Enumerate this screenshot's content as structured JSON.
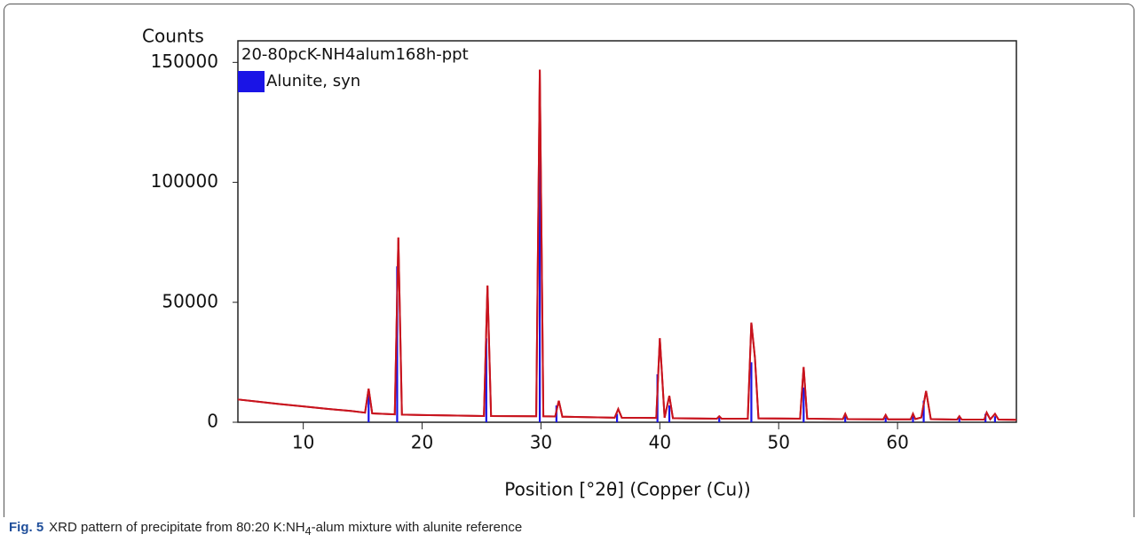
{
  "chart_data": {
    "type": "line",
    "y_label": "Counts",
    "x_label": "Position [°2θ] (Copper (Cu))",
    "xlim": [
      4.5,
      70
    ],
    "xticks": [
      10,
      20,
      30,
      40,
      50,
      60
    ],
    "ylim": [
      0,
      159000
    ],
    "yticks": [
      0,
      50000,
      100000,
      150000
    ],
    "legend": "upper left",
    "series": [
      {
        "name": "20-80pcK-NH4alum168h-ppt",
        "color": "#c8141e",
        "kind": "line",
        "x": [
          4.5,
          6,
          8,
          10,
          12,
          14,
          15.2,
          15.5,
          15.8,
          17.7,
          18.0,
          18.3,
          20,
          25.2,
          25.5,
          25.8,
          29.6,
          29.9,
          30.2,
          31.2,
          31.5,
          31.8,
          36.2,
          36.5,
          36.8,
          39.7,
          40.0,
          40.4,
          40.8,
          41.1,
          44.8,
          45.0,
          45.2,
          47.4,
          47.7,
          48.0,
          48.3,
          51.8,
          52.1,
          52.4,
          55.4,
          55.6,
          55.8,
          58.8,
          59.0,
          59.2,
          61.1,
          61.3,
          61.5,
          62.0,
          62.4,
          62.8,
          65.0,
          65.2,
          65.4,
          67.3,
          67.5,
          67.8,
          68.2,
          68.5,
          70
        ],
        "values": [
          9500,
          8700,
          7600,
          6600,
          5600,
          4700,
          4000,
          14000,
          3700,
          3300,
          77000,
          3200,
          3000,
          2600,
          57000,
          2600,
          2500,
          147000,
          2500,
          2400,
          9000,
          2300,
          1900,
          5500,
          1900,
          1800,
          35000,
          1900,
          11000,
          1700,
          1500,
          2500,
          1500,
          1500,
          41500,
          27000,
          1600,
          1500,
          23000,
          1500,
          1300,
          3500,
          1300,
          1200,
          3000,
          1200,
          1200,
          3500,
          1300,
          2000,
          13000,
          1300,
          1100,
          2500,
          1100,
          1100,
          4000,
          1200,
          3500,
          1100,
          1000
        ]
      },
      {
        "name": "Alunite, syn",
        "color": "#1a14e6",
        "kind": "stick",
        "x": [
          15.5,
          17.9,
          25.4,
          29.9,
          31.3,
          36.4,
          39.8,
          40.8,
          45.0,
          47.7,
          52.1,
          55.6,
          59.0,
          61.3,
          62.2,
          65.2,
          67.4,
          68.2
        ],
        "values": [
          12000,
          65000,
          35000,
          113000,
          7000,
          3500,
          20000,
          7000,
          2000,
          25000,
          14500,
          2500,
          2000,
          3000,
          9000,
          2000,
          3500,
          2500
        ]
      }
    ]
  },
  "caption": {
    "label": "Fig. 5",
    "text": "XRD pattern of precipitate from 80:20 K:NH",
    "sub": "4",
    "text2": "-alum mixture with alunite reference"
  }
}
